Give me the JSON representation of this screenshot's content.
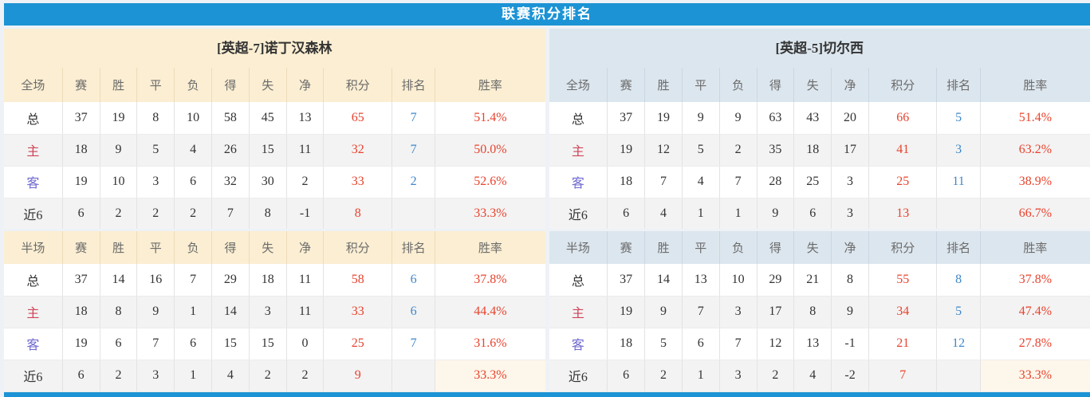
{
  "title": "联赛积分排名",
  "colors": {
    "accent_blue": "#1c93d4",
    "left_theme_cream": "#fbeed2",
    "right_theme_blue": "#dce6ee",
    "points_red": "#e8432e",
    "rank_blue": "#3f87c9",
    "home_label_red": "#cf4458",
    "away_label_blue": "#6f68cf"
  },
  "columns": {
    "full_section_label": "全场",
    "half_section_label": "半场",
    "stats": [
      "赛",
      "胜",
      "平",
      "负",
      "得",
      "失",
      "净"
    ],
    "points": "积分",
    "rank": "排名",
    "rate": "胜率"
  },
  "teams": [
    {
      "name": "[英超-7]诺丁汉森林",
      "theme": "cream",
      "full_rows": [
        {
          "label": "总",
          "type": "total",
          "stats": [
            "37",
            "19",
            "8",
            "10",
            "58",
            "45",
            "13"
          ],
          "points": "65",
          "rank": "7",
          "rate": "51.4%"
        },
        {
          "label": "主",
          "type": "home",
          "stats": [
            "18",
            "9",
            "5",
            "4",
            "26",
            "15",
            "11"
          ],
          "points": "32",
          "rank": "7",
          "rate": "50.0%"
        },
        {
          "label": "客",
          "type": "away",
          "stats": [
            "19",
            "10",
            "3",
            "6",
            "32",
            "30",
            "2"
          ],
          "points": "33",
          "rank": "2",
          "rate": "52.6%"
        },
        {
          "label": "近6",
          "type": "recent",
          "stats": [
            "6",
            "2",
            "2",
            "2",
            "7",
            "8",
            "-1"
          ],
          "points": "8",
          "rank": "",
          "rate": "33.3%"
        }
      ],
      "half_rows": [
        {
          "label": "总",
          "type": "total",
          "stats": [
            "37",
            "14",
            "16",
            "7",
            "29",
            "18",
            "11"
          ],
          "points": "58",
          "rank": "6",
          "rate": "37.8%"
        },
        {
          "label": "主",
          "type": "home",
          "stats": [
            "18",
            "8",
            "9",
            "1",
            "14",
            "3",
            "11"
          ],
          "points": "33",
          "rank": "6",
          "rate": "44.4%"
        },
        {
          "label": "客",
          "type": "away",
          "stats": [
            "19",
            "6",
            "7",
            "6",
            "15",
            "15",
            "0"
          ],
          "points": "25",
          "rank": "7",
          "rate": "31.6%"
        },
        {
          "label": "近6",
          "type": "recent",
          "stats": [
            "6",
            "2",
            "3",
            "1",
            "4",
            "2",
            "2"
          ],
          "points": "9",
          "rank": "",
          "rate": "33.3%"
        }
      ]
    },
    {
      "name": "[英超-5]切尔西",
      "theme": "blue",
      "full_rows": [
        {
          "label": "总",
          "type": "total",
          "stats": [
            "37",
            "19",
            "9",
            "9",
            "63",
            "43",
            "20"
          ],
          "points": "66",
          "rank": "5",
          "rate": "51.4%"
        },
        {
          "label": "主",
          "type": "home",
          "stats": [
            "19",
            "12",
            "5",
            "2",
            "35",
            "18",
            "17"
          ],
          "points": "41",
          "rank": "3",
          "rate": "63.2%"
        },
        {
          "label": "客",
          "type": "away",
          "stats": [
            "18",
            "7",
            "4",
            "7",
            "28",
            "25",
            "3"
          ],
          "points": "25",
          "rank": "11",
          "rate": "38.9%"
        },
        {
          "label": "近6",
          "type": "recent",
          "stats": [
            "6",
            "4",
            "1",
            "1",
            "9",
            "6",
            "3"
          ],
          "points": "13",
          "rank": "",
          "rate": "66.7%"
        }
      ],
      "half_rows": [
        {
          "label": "总",
          "type": "total",
          "stats": [
            "37",
            "14",
            "13",
            "10",
            "29",
            "21",
            "8"
          ],
          "points": "55",
          "rank": "8",
          "rate": "37.8%"
        },
        {
          "label": "主",
          "type": "home",
          "stats": [
            "19",
            "9",
            "7",
            "3",
            "17",
            "8",
            "9"
          ],
          "points": "34",
          "rank": "5",
          "rate": "47.4%"
        },
        {
          "label": "客",
          "type": "away",
          "stats": [
            "18",
            "5",
            "6",
            "7",
            "12",
            "13",
            "-1"
          ],
          "points": "21",
          "rank": "12",
          "rate": "27.8%"
        },
        {
          "label": "近6",
          "type": "recent",
          "stats": [
            "6",
            "2",
            "1",
            "3",
            "2",
            "4",
            "-2"
          ],
          "points": "7",
          "rank": "",
          "rate": "33.3%"
        }
      ]
    }
  ]
}
